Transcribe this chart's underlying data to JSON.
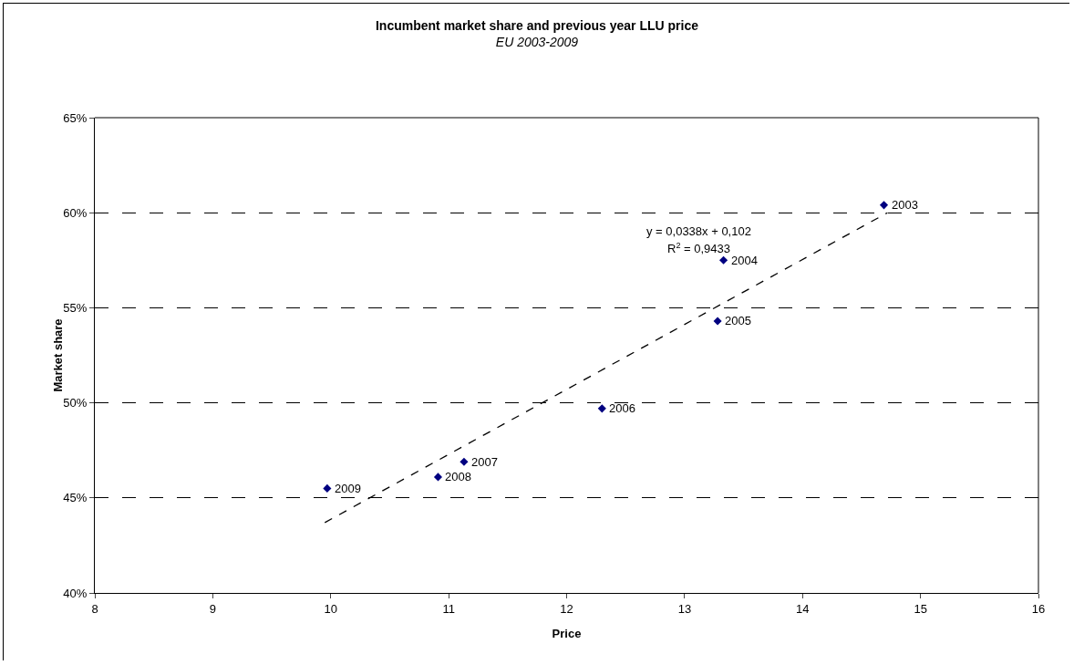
{
  "chart_data": {
    "type": "scatter",
    "title": "Incumbent market share and previous year LLU price",
    "subtitle": "EU 2003-2009",
    "xlabel": "Price",
    "ylabel": "Market share",
    "series": [
      {
        "color": "#000080",
        "x": [
          14.69,
          13.33,
          13.28,
          12.3,
          11.13,
          10.91,
          9.97
        ],
        "values": [
          60.4,
          57.5,
          54.3,
          49.7,
          46.9,
          46.1,
          45.5
        ]
      },
      {
        "type": "line",
        "color": "#000000",
        "marker": "none",
        "line_style": "dashed",
        "x": [
          9.95,
          14.72
        ],
        "values": [
          43.7,
          60.0
        ]
      }
    ],
    "annotations": [
      {
        "text": "2003",
        "x": 14.69,
        "y": 60.4
      },
      {
        "text": "2004",
        "x": 13.33,
        "y": 57.5
      },
      {
        "text": "2005",
        "x": 13.28,
        "y": 54.3
      },
      {
        "text": "2006",
        "x": 12.3,
        "y": 49.7
      },
      {
        "text": "2007",
        "x": 11.13,
        "y": 46.9
      },
      {
        "text": "2008",
        "x": 10.91,
        "y": 46.1
      },
      {
        "text": "2009",
        "x": 9.97,
        "y": 45.5
      },
      "y = 0,0338x + 0,102",
      "R$^{2}$ = 0,9433"
    ],
    "xlim": [
      8,
      16
    ],
    "xticks": [
      8,
      9,
      10,
      11,
      12,
      13,
      14,
      15,
      16
    ],
    "ylim": [
      40,
      65
    ],
    "yticks": [
      {
        "value": 40,
        "label": "40%"
      },
      {
        "value": 45,
        "label": "45%"
      },
      {
        "value": 50,
        "label": "50%"
      },
      {
        "value": 55,
        "label": "55%"
      },
      {
        "value": 60,
        "label": "60%"
      },
      {
        "value": 65,
        "label": "65%"
      }
    ],
    "grid": "y",
    "marker": "diamond"
  }
}
